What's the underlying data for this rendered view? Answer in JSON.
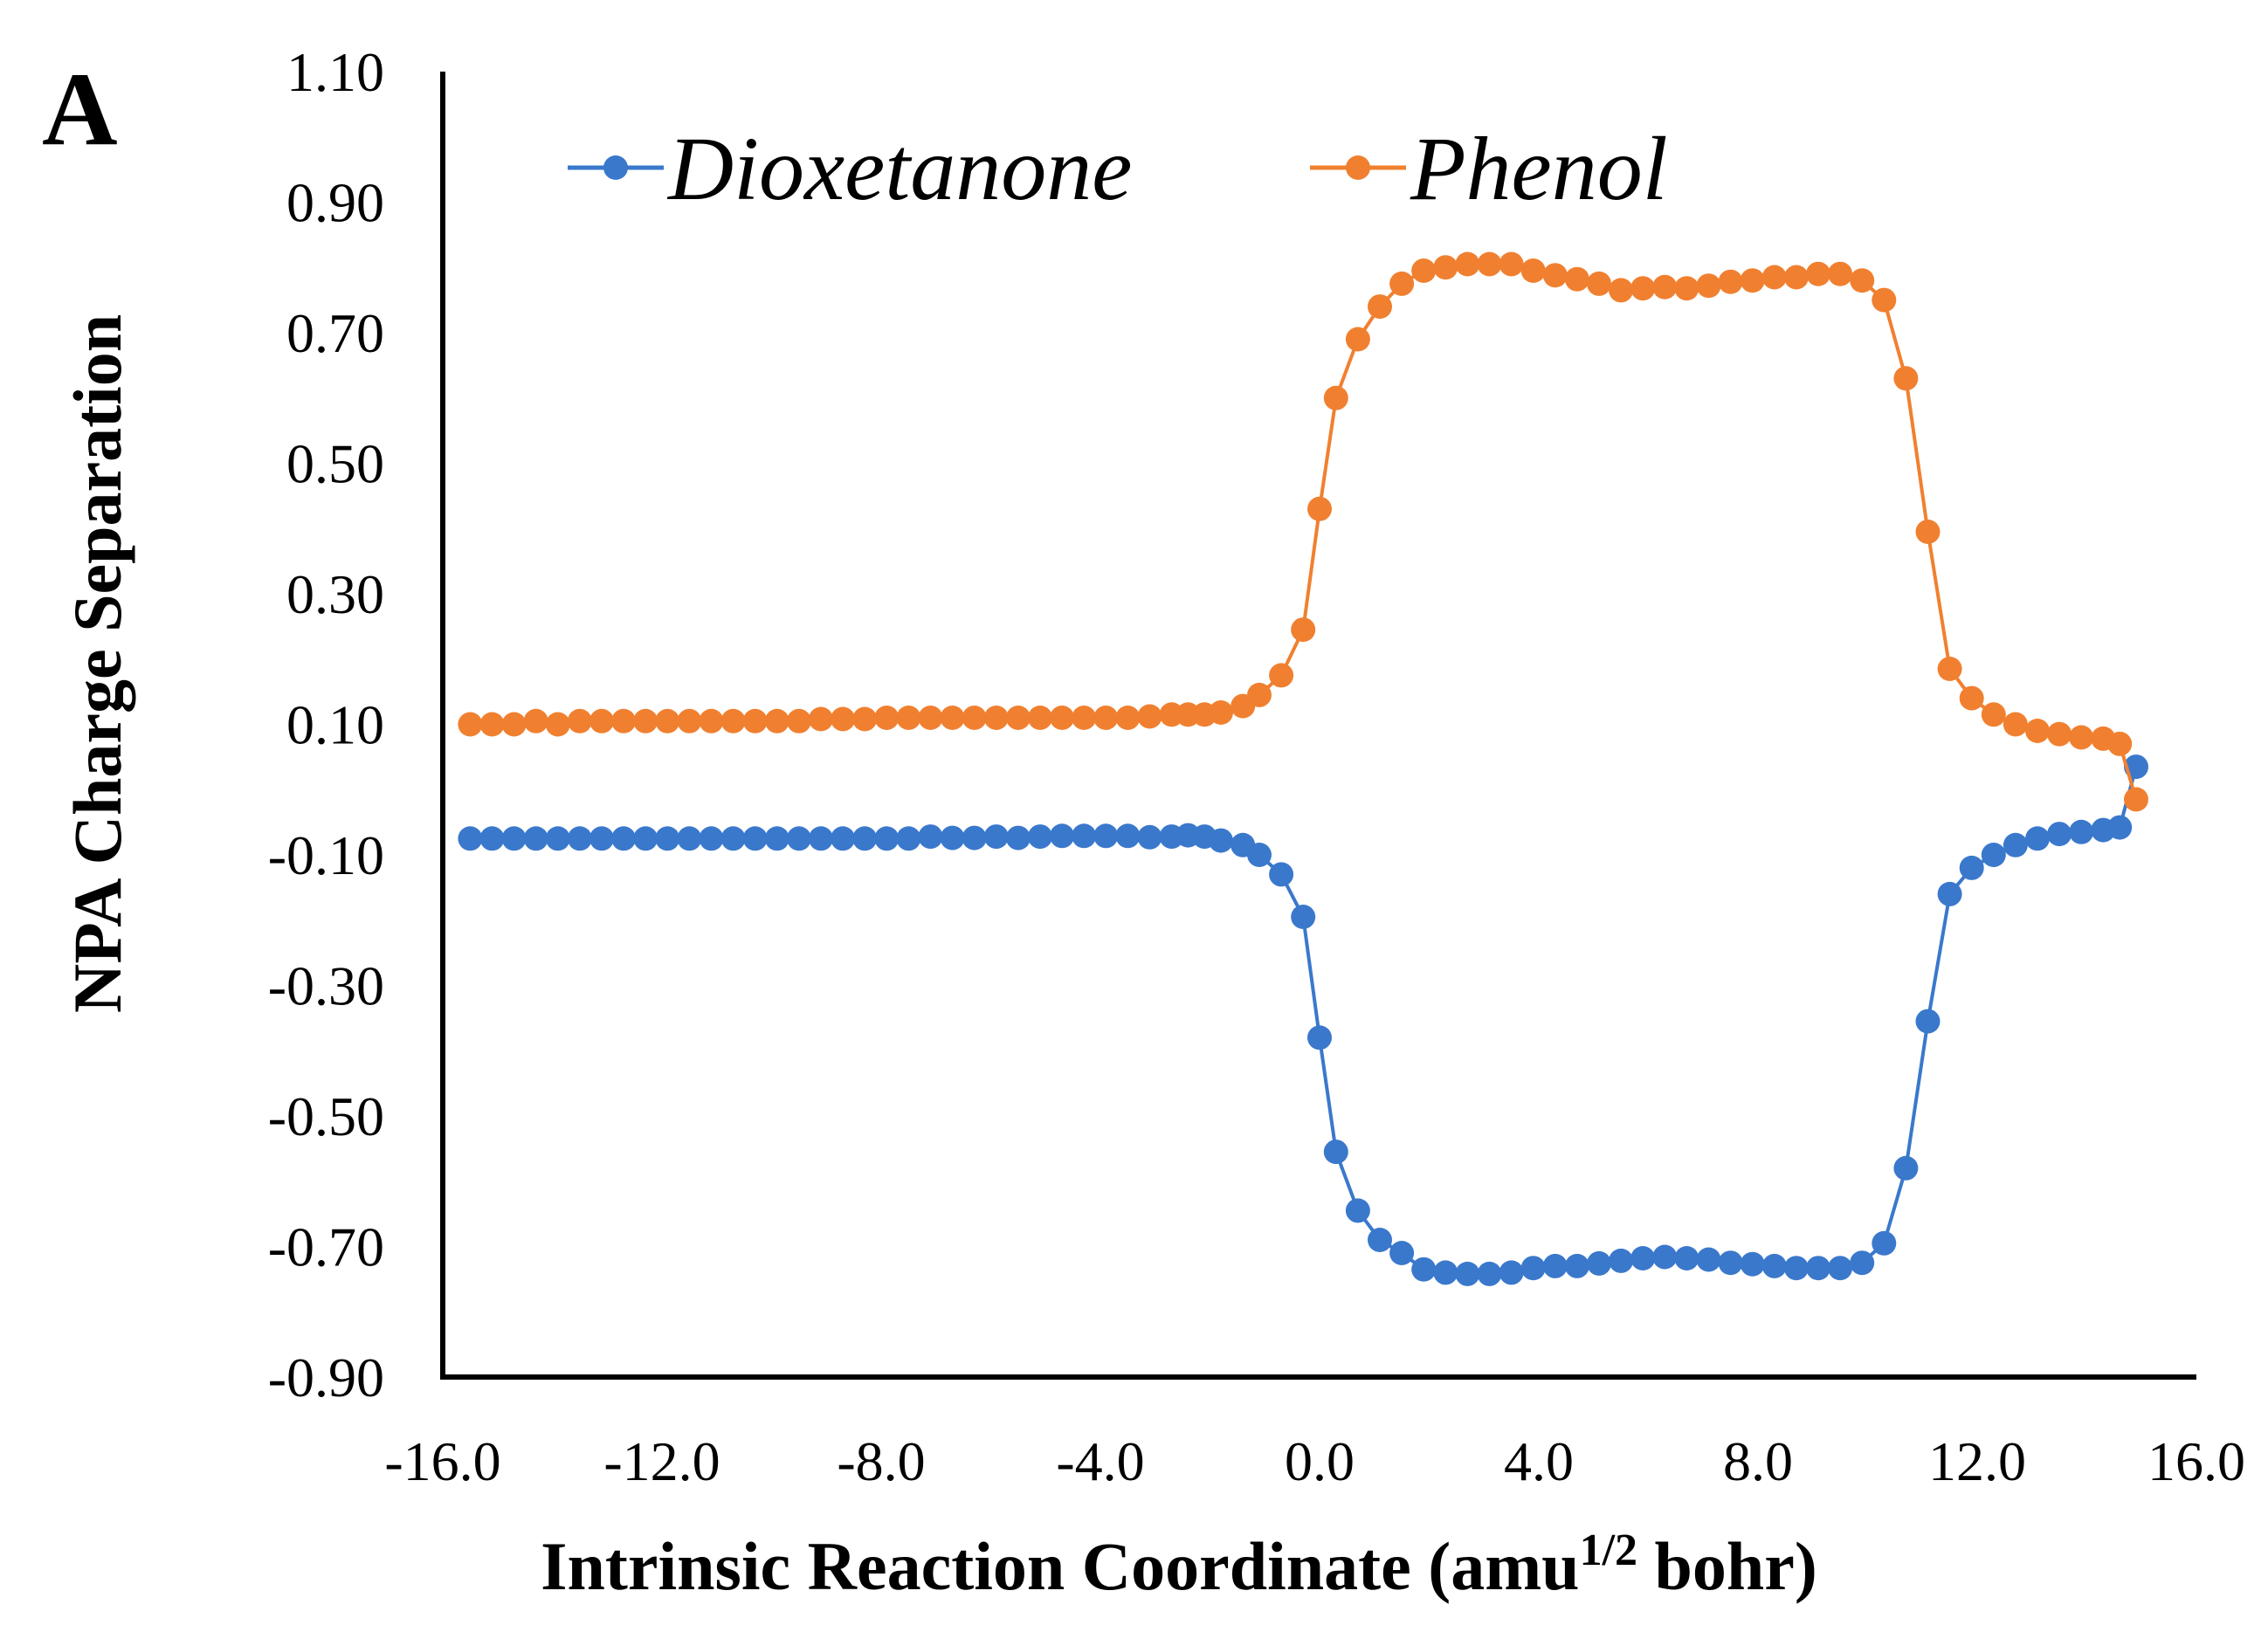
{
  "chart_data": {
    "type": "line",
    "panel_label": "A",
    "title": "",
    "xlabel": "Intrinsic  Reaction Coordinate  (amu",
    "xlabel_sup": "1/2",
    "xlabel_tail": " bohr)",
    "ylabel": "NPA Charge Separation",
    "xlim": [
      -16.0,
      16.0
    ],
    "ylim": [
      -0.9,
      1.1
    ],
    "x_ticks": [
      "-16.0",
      "-12.0",
      "-8.0",
      "-4.0",
      "0.0",
      "4.0",
      "8.0",
      "12.0",
      "16.0"
    ],
    "y_ticks": [
      "1.10",
      "0.90",
      "0.70",
      "0.50",
      "0.30",
      "0.10",
      "-0.10",
      "-0.30",
      "-0.50",
      "-0.70",
      "-0.90"
    ],
    "legend_position": "top",
    "grid": false,
    "series": [
      {
        "name": "Dioxetanone",
        "color": "#3a78cc",
        "points": [
          [
            -15.5,
            -0.075
          ],
          [
            -15.1,
            -0.075
          ],
          [
            -14.7,
            -0.075
          ],
          [
            -14.3,
            -0.075
          ],
          [
            -13.9,
            -0.075
          ],
          [
            -13.5,
            -0.075
          ],
          [
            -13.1,
            -0.075
          ],
          [
            -12.7,
            -0.075
          ],
          [
            -12.3,
            -0.075
          ],
          [
            -11.9,
            -0.075
          ],
          [
            -11.5,
            -0.075
          ],
          [
            -11.1,
            -0.075
          ],
          [
            -10.7,
            -0.075
          ],
          [
            -10.3,
            -0.075
          ],
          [
            -9.9,
            -0.075
          ],
          [
            -9.5,
            -0.075
          ],
          [
            -9.1,
            -0.075
          ],
          [
            -8.7,
            -0.075
          ],
          [
            -8.3,
            -0.075
          ],
          [
            -7.9,
            -0.075
          ],
          [
            -7.5,
            -0.075
          ],
          [
            -7.1,
            -0.072
          ],
          [
            -6.7,
            -0.074
          ],
          [
            -6.3,
            -0.074
          ],
          [
            -5.9,
            -0.072
          ],
          [
            -5.5,
            -0.074
          ],
          [
            -5.1,
            -0.072
          ],
          [
            -4.7,
            -0.071
          ],
          [
            -4.3,
            -0.071
          ],
          [
            -3.9,
            -0.071
          ],
          [
            -3.5,
            -0.071
          ],
          [
            -3.1,
            -0.073
          ],
          [
            -2.7,
            -0.072
          ],
          [
            -2.4,
            -0.07
          ],
          [
            -2.1,
            -0.072
          ],
          [
            -1.8,
            -0.078
          ],
          [
            -1.4,
            -0.085
          ],
          [
            -1.1,
            -0.1
          ],
          [
            -0.7,
            -0.13
          ],
          [
            -0.3,
            -0.195
          ],
          [
            0.0,
            -0.38
          ],
          [
            0.3,
            -0.555
          ],
          [
            0.7,
            -0.645
          ],
          [
            1.1,
            -0.69
          ],
          [
            1.5,
            -0.71
          ],
          [
            1.9,
            -0.735
          ],
          [
            2.3,
            -0.74
          ],
          [
            2.7,
            -0.742
          ],
          [
            3.1,
            -0.742
          ],
          [
            3.5,
            -0.74
          ],
          [
            3.9,
            -0.733
          ],
          [
            4.3,
            -0.73
          ],
          [
            4.7,
            -0.73
          ],
          [
            5.1,
            -0.726
          ],
          [
            5.5,
            -0.722
          ],
          [
            5.9,
            -0.718
          ],
          [
            6.3,
            -0.716
          ],
          [
            6.7,
            -0.718
          ],
          [
            7.1,
            -0.72
          ],
          [
            7.5,
            -0.725
          ],
          [
            7.9,
            -0.727
          ],
          [
            8.3,
            -0.73
          ],
          [
            8.7,
            -0.733
          ],
          [
            9.1,
            -0.733
          ],
          [
            9.5,
            -0.733
          ],
          [
            9.9,
            -0.725
          ],
          [
            10.3,
            -0.695
          ],
          [
            10.7,
            -0.58
          ],
          [
            11.1,
            -0.355
          ],
          [
            11.5,
            -0.16
          ],
          [
            11.9,
            -0.12
          ],
          [
            12.3,
            -0.1
          ],
          [
            12.7,
            -0.085
          ],
          [
            13.1,
            -0.075
          ],
          [
            13.5,
            -0.068
          ],
          [
            13.9,
            -0.065
          ],
          [
            14.3,
            -0.062
          ],
          [
            14.6,
            -0.058
          ],
          [
            14.9,
            0.035
          ]
        ]
      },
      {
        "name": "Phenol",
        "color": "#f08030",
        "points": [
          [
            -15.5,
            0.1
          ],
          [
            -15.1,
            0.1
          ],
          [
            -14.7,
            0.1
          ],
          [
            -14.3,
            0.105
          ],
          [
            -13.9,
            0.1
          ],
          [
            -13.5,
            0.105
          ],
          [
            -13.1,
            0.105
          ],
          [
            -12.7,
            0.105
          ],
          [
            -12.3,
            0.105
          ],
          [
            -11.9,
            0.105
          ],
          [
            -11.5,
            0.105
          ],
          [
            -11.1,
            0.105
          ],
          [
            -10.7,
            0.105
          ],
          [
            -10.3,
            0.105
          ],
          [
            -9.9,
            0.105
          ],
          [
            -9.5,
            0.105
          ],
          [
            -9.1,
            0.108
          ],
          [
            -8.7,
            0.108
          ],
          [
            -8.3,
            0.108
          ],
          [
            -7.9,
            0.11
          ],
          [
            -7.5,
            0.11
          ],
          [
            -7.1,
            0.11
          ],
          [
            -6.7,
            0.11
          ],
          [
            -6.3,
            0.11
          ],
          [
            -5.9,
            0.11
          ],
          [
            -5.5,
            0.11
          ],
          [
            -5.1,
            0.11
          ],
          [
            -4.7,
            0.11
          ],
          [
            -4.3,
            0.11
          ],
          [
            -3.9,
            0.11
          ],
          [
            -3.5,
            0.11
          ],
          [
            -3.1,
            0.112
          ],
          [
            -2.7,
            0.115
          ],
          [
            -2.4,
            0.115
          ],
          [
            -2.1,
            0.115
          ],
          [
            -1.8,
            0.118
          ],
          [
            -1.4,
            0.128
          ],
          [
            -1.1,
            0.145
          ],
          [
            -0.7,
            0.175
          ],
          [
            -0.3,
            0.245
          ],
          [
            0.0,
            0.43
          ],
          [
            0.3,
            0.6
          ],
          [
            0.7,
            0.69
          ],
          [
            1.1,
            0.74
          ],
          [
            1.5,
            0.775
          ],
          [
            1.9,
            0.795
          ],
          [
            2.3,
            0.8
          ],
          [
            2.7,
            0.805
          ],
          [
            3.1,
            0.805
          ],
          [
            3.5,
            0.805
          ],
          [
            3.9,
            0.795
          ],
          [
            4.3,
            0.788
          ],
          [
            4.7,
            0.782
          ],
          [
            5.1,
            0.775
          ],
          [
            5.5,
            0.765
          ],
          [
            5.9,
            0.768
          ],
          [
            6.3,
            0.77
          ],
          [
            6.7,
            0.768
          ],
          [
            7.1,
            0.772
          ],
          [
            7.5,
            0.778
          ],
          [
            7.9,
            0.78
          ],
          [
            8.3,
            0.785
          ],
          [
            8.7,
            0.785
          ],
          [
            9.1,
            0.79
          ],
          [
            9.5,
            0.79
          ],
          [
            9.9,
            0.78
          ],
          [
            10.3,
            0.75
          ],
          [
            10.7,
            0.63
          ],
          [
            11.1,
            0.395
          ],
          [
            11.5,
            0.185
          ],
          [
            11.9,
            0.14
          ],
          [
            12.3,
            0.115
          ],
          [
            12.7,
            0.1
          ],
          [
            13.1,
            0.09
          ],
          [
            13.5,
            0.085
          ],
          [
            13.9,
            0.08
          ],
          [
            14.3,
            0.078
          ],
          [
            14.6,
            0.07
          ],
          [
            14.9,
            -0.015
          ]
        ]
      }
    ]
  }
}
